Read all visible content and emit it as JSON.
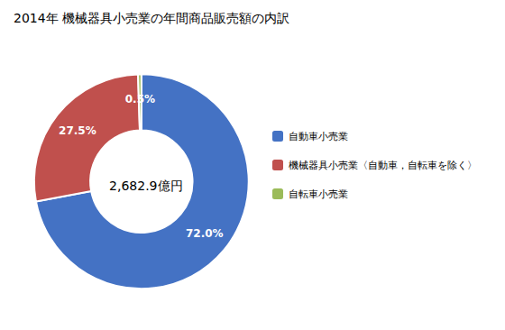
{
  "chart_data": {
    "type": "pie",
    "title": "2014年 機械器具小売業の年間商品販売額の内訳",
    "annotations": [
      "2,682.9億円"
    ],
    "categories": [
      "自動車小売業",
      "機械器具小売業〈自動車，自転車を除く〉",
      "自転車小売業"
    ],
    "values": [
      72.0,
      27.5,
      0.5
    ],
    "value_labels": [
      "72.0%",
      "27.5%",
      "0.5%"
    ],
    "colors": [
      "#4472C4",
      "#C0504D",
      "#9BBB59"
    ],
    "data_labels": true,
    "legend": "right"
  }
}
